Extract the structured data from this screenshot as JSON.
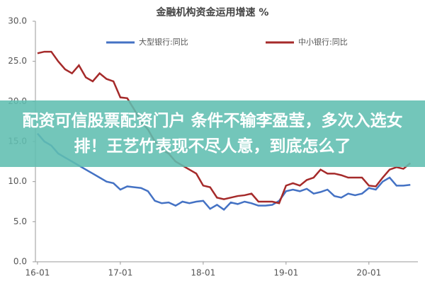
{
  "chart_data": {
    "type": "line",
    "title": "金融机构资金运用增速 %",
    "x": [
      0,
      1,
      2,
      3,
      4,
      5,
      6,
      7,
      8,
      9,
      10,
      11,
      12,
      13,
      14,
      15,
      16,
      17,
      18,
      19,
      20,
      21,
      22,
      23,
      24,
      25,
      26,
      27,
      28,
      29,
      30,
      31,
      32,
      33,
      34,
      35,
      36,
      37,
      38,
      39,
      40,
      41,
      42,
      43,
      44,
      45,
      46,
      47,
      48,
      49,
      50,
      51,
      52,
      53,
      54
    ],
    "series": [
      {
        "name": "大型银行:同比",
        "color": "#4472c4",
        "values": [
          16.0,
          15.0,
          14.5,
          13.5,
          13.0,
          12.5,
          12.0,
          11.5,
          11.0,
          10.5,
          10.0,
          9.8,
          9.0,
          9.4,
          9.3,
          9.2,
          8.8,
          7.6,
          7.3,
          7.4,
          7.0,
          7.5,
          7.3,
          7.5,
          7.6,
          6.6,
          7.1,
          6.5,
          7.4,
          7.2,
          7.5,
          7.3,
          7.0,
          7.0,
          7.1,
          7.6,
          8.8,
          9.0,
          8.8,
          9.1,
          8.5,
          8.7,
          9.0,
          8.2,
          8.0,
          8.5,
          8.3,
          8.5,
          9.2,
          9.0,
          10.0,
          10.5,
          9.5,
          9.5,
          9.6
        ]
      },
      {
        "name": "中小银行:同比",
        "color": "#a52a2a",
        "values": [
          26.0,
          26.2,
          26.2,
          25.0,
          24.0,
          23.5,
          24.5,
          23.0,
          22.5,
          23.5,
          22.8,
          22.5,
          20.5,
          20.4,
          19.0,
          17.5,
          16.5,
          15.0,
          14.0,
          13.5,
          12.5,
          12.0,
          11.5,
          11.0,
          9.5,
          9.3,
          8.0,
          7.8,
          8.0,
          8.2,
          8.3,
          8.5,
          7.5,
          7.5,
          7.5,
          7.3,
          9.5,
          9.8,
          9.5,
          10.2,
          10.5,
          11.5,
          11.0,
          11.0,
          10.8,
          10.5,
          10.5,
          10.5,
          9.5,
          9.4,
          10.5,
          11.5,
          11.8,
          11.6,
          12.3
        ]
      }
    ],
    "xlim": [
      -0.3,
      55.1
    ],
    "xticks": [
      {
        "value": 0,
        "label": "16-01"
      },
      {
        "value": 12,
        "label": "17-01"
      },
      {
        "value": 24,
        "label": "18-01"
      },
      {
        "value": 36,
        "label": "19-01"
      },
      {
        "value": 48,
        "label": "20-01"
      }
    ],
    "ylim": [
      0,
      30
    ],
    "yticks": [
      {
        "value": 0,
        "label": "0.0"
      },
      {
        "value": 5,
        "label": "5.0"
      },
      {
        "value": 10,
        "label": "10.0"
      },
      {
        "value": 15,
        "label": "15.0"
      },
      {
        "value": 20,
        "label": "20.0"
      },
      {
        "value": 25,
        "label": "25.0"
      },
      {
        "value": 30,
        "label": "30.0"
      }
    ],
    "grid": false,
    "overlay_text": "配资可信股票配资门户 条件不输李盈莹，多次入选女排！王艺竹表现不尽人意，到底怎么了"
  }
}
